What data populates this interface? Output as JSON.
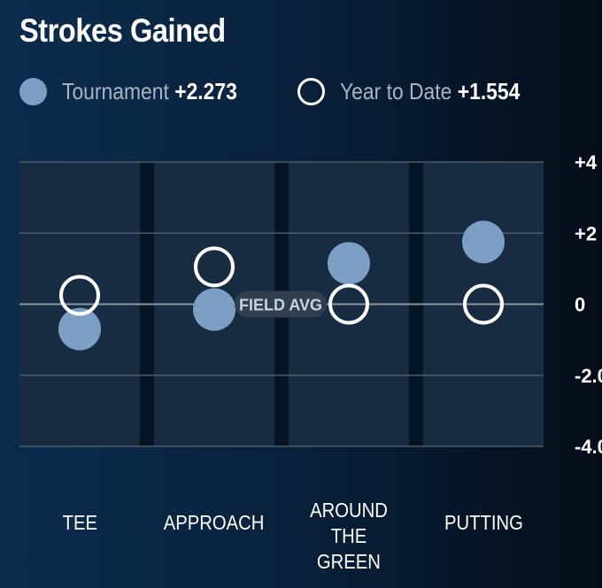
{
  "title": "Strokes Gained",
  "legend": {
    "tournament": {
      "label": "Tournament",
      "value": "+2.273"
    },
    "ytd": {
      "label": "Year to Date",
      "value": "+1.554"
    }
  },
  "colors": {
    "tournament": "#7d9fc6",
    "ytd": "#ffffff",
    "column_fill": "#1a2f45",
    "gridline": "#4c5b6b",
    "field_avg_badge": "#2f3f50"
  },
  "chart_data": {
    "type": "scatter",
    "title": "Strokes Gained",
    "categories": [
      "TEE",
      "APPROACH",
      "AROUND THE GREEN",
      "PUTTING"
    ],
    "category_labels": [
      [
        "TEE"
      ],
      [
        "APPROACH"
      ],
      [
        "AROUND THE",
        "GREEN"
      ],
      [
        "PUTTING"
      ]
    ],
    "series": [
      {
        "name": "Tournament",
        "values": [
          -0.7,
          -0.15,
          1.15,
          1.75
        ],
        "style": "filled"
      },
      {
        "name": "Year to Date",
        "values": [
          0.25,
          1.05,
          0.0,
          0.0
        ],
        "style": "hollow"
      }
    ],
    "ylim": [
      -4,
      4
    ],
    "yticks": [
      4,
      2,
      0,
      -2,
      -4
    ],
    "ytick_labels": [
      "+4",
      "+2",
      "0",
      "-2.0",
      "-4.0"
    ],
    "yaxis_side": "right",
    "grid": true,
    "reference_line": {
      "value": 0,
      "label": "FIELD AVG"
    },
    "legend_position": "top"
  }
}
